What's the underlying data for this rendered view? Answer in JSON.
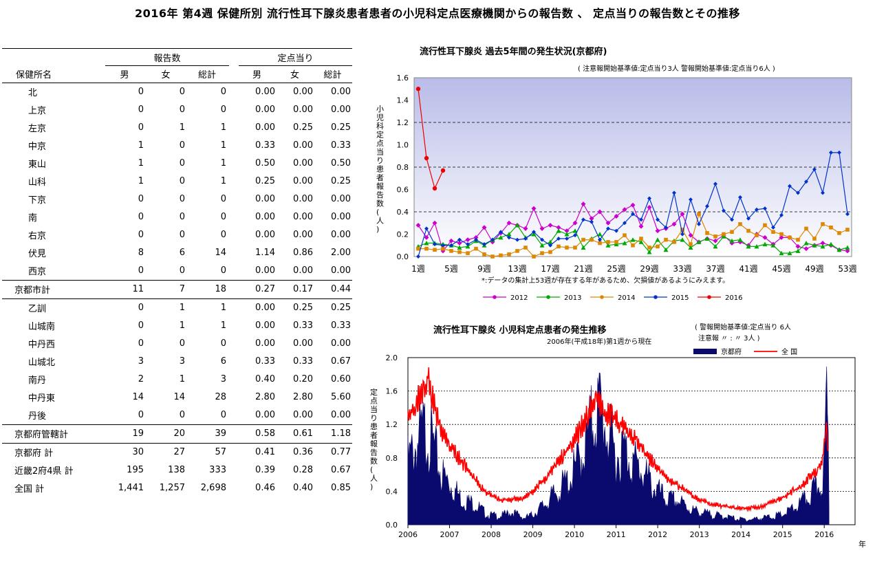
{
  "page_title": "2016年 第4週 保健所別 流行性耳下腺炎患者患者の小児科定点医療機関からの報告数 、 定点当りの報告数とその推移",
  "table": {
    "group_headers": {
      "reports": "報告数",
      "per_sentinel": "定点当り"
    },
    "columns": [
      "保健所名",
      "男",
      "女",
      "総計",
      "男",
      "女",
      "総計"
    ],
    "rows": [
      {
        "name": "北",
        "m": "0",
        "f": "0",
        "t": "0",
        "rm": "0.00",
        "rf": "0.00",
        "rt": "0.00"
      },
      {
        "name": "上京",
        "m": "0",
        "f": "0",
        "t": "0",
        "rm": "0.00",
        "rf": "0.00",
        "rt": "0.00"
      },
      {
        "name": "左京",
        "m": "0",
        "f": "1",
        "t": "1",
        "rm": "0.00",
        "rf": "0.25",
        "rt": "0.25"
      },
      {
        "name": "中京",
        "m": "1",
        "f": "0",
        "t": "1",
        "rm": "0.33",
        "rf": "0.00",
        "rt": "0.33"
      },
      {
        "name": "東山",
        "m": "1",
        "f": "0",
        "t": "1",
        "rm": "0.50",
        "rf": "0.00",
        "rt": "0.50"
      },
      {
        "name": "山科",
        "m": "1",
        "f": "0",
        "t": "1",
        "rm": "0.25",
        "rf": "0.00",
        "rt": "0.25"
      },
      {
        "name": "下京",
        "m": "0",
        "f": "0",
        "t": "0",
        "rm": "0.00",
        "rf": "0.00",
        "rt": "0.00"
      },
      {
        "name": "南",
        "m": "0",
        "f": "0",
        "t": "0",
        "rm": "0.00",
        "rf": "0.00",
        "rt": "0.00"
      },
      {
        "name": "右京",
        "m": "0",
        "f": "0",
        "t": "0",
        "rm": "0.00",
        "rf": "0.00",
        "rt": "0.00"
      },
      {
        "name": "伏見",
        "m": "8",
        "f": "6",
        "t": "14",
        "rm": "1.14",
        "rf": "0.86",
        "rt": "2.00"
      },
      {
        "name": "西京",
        "m": "0",
        "f": "0",
        "t": "0",
        "rm": "0.00",
        "rf": "0.00",
        "rt": "0.00"
      },
      {
        "name": "京都市計",
        "m": "11",
        "f": "7",
        "t": "18",
        "rm": "0.27",
        "rf": "0.17",
        "rt": "0.44"
      },
      {
        "name": "乙訓",
        "m": "0",
        "f": "1",
        "t": "1",
        "rm": "0.00",
        "rf": "0.25",
        "rt": "0.25"
      },
      {
        "name": "山城南",
        "m": "0",
        "f": "1",
        "t": "1",
        "rm": "0.00",
        "rf": "0.33",
        "rt": "0.33"
      },
      {
        "name": "中丹西",
        "m": "0",
        "f": "0",
        "t": "0",
        "rm": "0.00",
        "rf": "0.00",
        "rt": "0.00"
      },
      {
        "name": "山城北",
        "m": "3",
        "f": "3",
        "t": "6",
        "rm": "0.33",
        "rf": "0.33",
        "rt": "0.67"
      },
      {
        "name": "南丹",
        "m": "2",
        "f": "1",
        "t": "3",
        "rm": "0.40",
        "rf": "0.20",
        "rt": "0.60"
      },
      {
        "name": "中丹東",
        "m": "14",
        "f": "14",
        "t": "28",
        "rm": "2.80",
        "rf": "2.80",
        "rt": "5.60"
      },
      {
        "name": "丹後",
        "m": "0",
        "f": "0",
        "t": "0",
        "rm": "0.00",
        "rf": "0.00",
        "rt": "0.00"
      },
      {
        "name": "京都府管轄計",
        "m": "19",
        "f": "20",
        "t": "39",
        "rm": "0.58",
        "rf": "0.61",
        "rt": "1.18"
      },
      {
        "name": "京都府 計",
        "m": "30",
        "f": "27",
        "t": "57",
        "rm": "0.41",
        "rf": "0.36",
        "rt": "0.77"
      },
      {
        "name": "近畿2府4県 計",
        "m": "195",
        "f": "138",
        "t": "333",
        "rm": "0.39",
        "rf": "0.28",
        "rt": "0.67"
      },
      {
        "name": "全国 計",
        "m": "1,441",
        "f": "1,257",
        "t": "2,698",
        "rm": "0.46",
        "rf": "0.40",
        "rt": "0.85"
      }
    ]
  },
  "chart_data": [
    {
      "type": "line",
      "title": "流行性耳下腺炎 過去5年間の発生状況(京都府)",
      "subtitle": "( 注意報開始基準値:定点当り3人 警報開始基準値:定点当り6人 )",
      "ylabel": "小児科定点当り患者報告数(人)",
      "xlabel": "",
      "note": "*:データの集計上53週が存在する年があるため、欠損値があるようにみえます。",
      "ylim": [
        0,
        1.6
      ],
      "yticks": [
        "0.0",
        "0.2",
        "0.4",
        "0.6",
        "0.8",
        "1.0",
        "1.2",
        "1.4",
        "1.6"
      ],
      "xticks": [
        "1週",
        "5週",
        "9週",
        "13週",
        "17週",
        "21週",
        "25週",
        "29週",
        "33週",
        "37週",
        "41週",
        "45週",
        "49週",
        "53週"
      ],
      "legend_position": "bottom",
      "series": [
        {
          "name": "2012",
          "color": "#cc00cc",
          "values": [
            0.28,
            0.17,
            0.3,
            0.05,
            0.14,
            0.12,
            0.15,
            0.17,
            0.26,
            0.13,
            0.21,
            0.3,
            0.28,
            0.25,
            0.43,
            0.25,
            0.28,
            0.26,
            0.23,
            0.3,
            0.47,
            0.34,
            0.4,
            0.3,
            0.36,
            0.42,
            0.46,
            0.27,
            0.44,
            0.23,
            0.25,
            0.29,
            0.38,
            0.19,
            0.13,
            0.16,
            0.14,
            0.19,
            0.12,
            0.13,
            0.1,
            0.2,
            0.17,
            0.11,
            0.17,
            0.17,
            0.09,
            0.07,
            0.1,
            0.12,
            0.1,
            0.06,
            0.05
          ]
        },
        {
          "name": "2013",
          "color": "#00aa00",
          "values": [
            0.09,
            0.12,
            0.12,
            0.11,
            0.1,
            0.08,
            0.09,
            0.14,
            0.1,
            0.15,
            0.17,
            0.2,
            0.28,
            0.17,
            0.2,
            0.1,
            0.13,
            0.23,
            0.2,
            0.23,
            0.08,
            0.16,
            0.2,
            0.1,
            0.11,
            0.12,
            0.15,
            0.13,
            0.04,
            0.15,
            0.06,
            0.14,
            0.15,
            0.08,
            0.13,
            0.16,
            0.09,
            0.18,
            0.14,
            0.15,
            0.09,
            0.09,
            0.11,
            0.1,
            0.03,
            0.03,
            0.05,
            0.12,
            0.1,
            0.09,
            0.11,
            0.06,
            0.08
          ]
        },
        {
          "name": "2014",
          "color": "#dd8800",
          "values": [
            0.07,
            0.07,
            0.06,
            0.07,
            0.05,
            0.04,
            0.03,
            0.07,
            0.02,
            0.0,
            0.01,
            0.02,
            0.05,
            0.08,
            0.0,
            0.03,
            0.04,
            0.09,
            0.08,
            0.08,
            0.15,
            0.15,
            0.12,
            0.13,
            0.13,
            0.19,
            0.1,
            0.16,
            0.08,
            0.09,
            0.15,
            0.13,
            0.24,
            0.11,
            0.38,
            0.21,
            0.18,
            0.2,
            0.22,
            0.29,
            0.23,
            0.19,
            0.28,
            0.22,
            0.2,
            0.17,
            0.15,
            0.25,
            0.16,
            0.29,
            0.26,
            0.21,
            0.24
          ]
        },
        {
          "name": "2015",
          "color": "#0033cc",
          "values": [
            0.0,
            0.25,
            0.11,
            0.1,
            0.1,
            0.15,
            0.11,
            0.15,
            0.11,
            0.15,
            0.22,
            0.17,
            0.15,
            0.16,
            0.22,
            0.15,
            0.1,
            0.16,
            0.16,
            0.19,
            0.33,
            0.31,
            0.15,
            0.25,
            0.23,
            0.3,
            0.38,
            0.33,
            0.52,
            0.33,
            0.26,
            0.57,
            0.2,
            0.51,
            0.29,
            0.45,
            0.65,
            0.41,
            0.33,
            0.53,
            0.34,
            0.42,
            0.43,
            0.26,
            0.37,
            0.63,
            0.57,
            0.67,
            0.78,
            0.57,
            0.93,
            0.93,
            0.38
          ]
        },
        {
          "name": "2016",
          "color": "#ee0000",
          "values": [
            1.5,
            0.88,
            0.61,
            0.77
          ]
        }
      ]
    },
    {
      "type": "area",
      "title": "流行性耳下腺炎 小児科定点患者の発生推移",
      "subtitle": "2006年(平成18年)第1週から現在",
      "criteria_text": [
        "( 警報開始基準値:定点当り 6人",
        "注意報 〃 : 〃 3人 )"
      ],
      "ylabel": "定点当り患者報告数(人)",
      "xlabel": "年",
      "ylim": [
        0,
        2.0
      ],
      "yticks": [
        "0.0",
        "0.4",
        "0.8",
        "1.2",
        "1.6",
        "2.0"
      ],
      "xticks": [
        "2006",
        "2007",
        "2008",
        "2009",
        "2010",
        "2011",
        "2012",
        "2013",
        "2014",
        "2015",
        "2016"
      ],
      "legend_position": "top-right",
      "series": [
        {
          "name": "京都府",
          "color": "#0a0a6e",
          "kind": "area",
          "anchors": [
            [
              2006.0,
              0.75
            ],
            [
              2006.3,
              1.05
            ],
            [
              2006.45,
              1.15
            ],
            [
              2006.6,
              0.95
            ],
            [
              2006.8,
              0.6
            ],
            [
              2007.0,
              0.5
            ],
            [
              2007.3,
              0.3
            ],
            [
              2007.6,
              0.25
            ],
            [
              2007.9,
              0.12
            ],
            [
              2008.2,
              0.1
            ],
            [
              2008.5,
              0.15
            ],
            [
              2008.8,
              0.08
            ],
            [
              2009.0,
              0.12
            ],
            [
              2009.3,
              0.25
            ],
            [
              2009.6,
              0.4
            ],
            [
              2009.9,
              0.55
            ],
            [
              2010.1,
              0.75
            ],
            [
              2010.3,
              1.0
            ],
            [
              2010.45,
              1.3
            ],
            [
              2010.6,
              1.4
            ],
            [
              2010.8,
              1.1
            ],
            [
              2011.0,
              0.8
            ],
            [
              2011.2,
              0.9
            ],
            [
              2011.4,
              0.75
            ],
            [
              2011.6,
              0.65
            ],
            [
              2011.9,
              0.45
            ],
            [
              2012.2,
              0.3
            ],
            [
              2012.5,
              0.28
            ],
            [
              2012.8,
              0.18
            ],
            [
              2013.0,
              0.15
            ],
            [
              2013.3,
              0.12
            ],
            [
              2013.6,
              0.1
            ],
            [
              2013.9,
              0.07
            ],
            [
              2014.2,
              0.06
            ],
            [
              2014.5,
              0.08
            ],
            [
              2014.8,
              0.1
            ],
            [
              2015.0,
              0.12
            ],
            [
              2015.3,
              0.2
            ],
            [
              2015.6,
              0.32
            ],
            [
              2015.85,
              0.45
            ],
            [
              2016.0,
              0.65
            ],
            [
              2016.05,
              1.5
            ],
            [
              2016.1,
              0.9
            ],
            [
              2016.12,
              0.0
            ]
          ]
        },
        {
          "name": "全 国",
          "color": "#ff0000",
          "kind": "line",
          "anchors": [
            [
              2006.0,
              1.25
            ],
            [
              2006.2,
              1.45
            ],
            [
              2006.4,
              1.65
            ],
            [
              2006.5,
              1.78
            ],
            [
              2006.6,
              1.5
            ],
            [
              2006.8,
              1.1
            ],
            [
              2007.0,
              0.95
            ],
            [
              2007.3,
              0.75
            ],
            [
              2007.6,
              0.55
            ],
            [
              2007.9,
              0.38
            ],
            [
              2008.2,
              0.3
            ],
            [
              2008.5,
              0.3
            ],
            [
              2008.8,
              0.32
            ],
            [
              2009.0,
              0.4
            ],
            [
              2009.3,
              0.55
            ],
            [
              2009.6,
              0.75
            ],
            [
              2009.9,
              0.95
            ],
            [
              2010.1,
              1.1
            ],
            [
              2010.3,
              1.3
            ],
            [
              2010.5,
              1.5
            ],
            [
              2010.7,
              1.35
            ],
            [
              2010.9,
              1.3
            ],
            [
              2011.1,
              1.2
            ],
            [
              2011.3,
              1.1
            ],
            [
              2011.5,
              1.0
            ],
            [
              2011.8,
              0.8
            ],
            [
              2012.1,
              0.6
            ],
            [
              2012.4,
              0.5
            ],
            [
              2012.7,
              0.4
            ],
            [
              2013.0,
              0.3
            ],
            [
              2013.3,
              0.25
            ],
            [
              2013.6,
              0.22
            ],
            [
              2013.9,
              0.2
            ],
            [
              2014.2,
              0.2
            ],
            [
              2014.5,
              0.22
            ],
            [
              2014.8,
              0.28
            ],
            [
              2015.1,
              0.35
            ],
            [
              2015.4,
              0.45
            ],
            [
              2015.7,
              0.58
            ],
            [
              2015.95,
              0.75
            ],
            [
              2016.05,
              1.2
            ],
            [
              2016.1,
              0.85
            ]
          ]
        }
      ]
    }
  ]
}
